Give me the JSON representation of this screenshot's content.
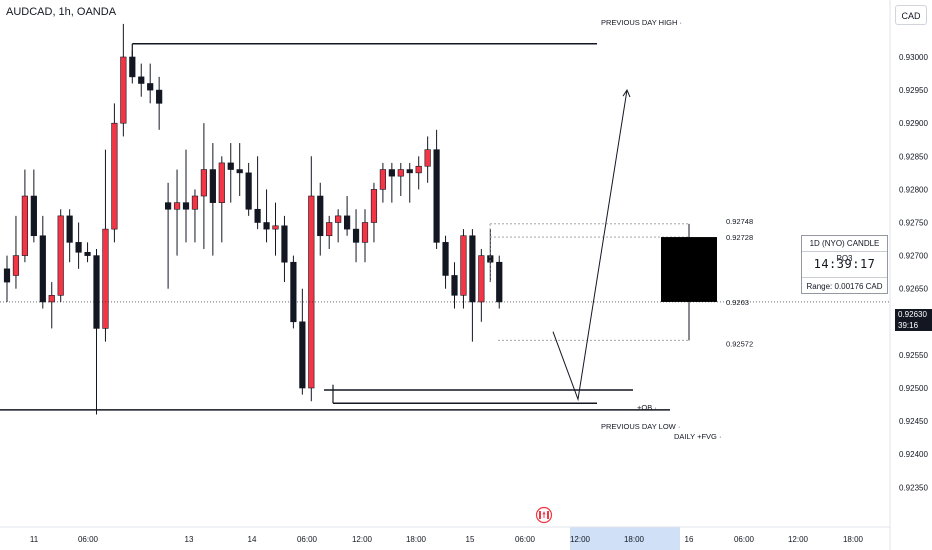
{
  "header": {
    "symbol_title": "AUDCAD, 1h, OANDA",
    "currency": "CAD"
  },
  "chart_data": {
    "type": "candlestick",
    "title": "AUDCAD, 1h, OANDA",
    "y_axis": {
      "ticks": [
        "0.93000",
        "0.92950",
        "0.92900",
        "0.92850",
        "0.92800",
        "0.92750",
        "0.92700",
        "0.92650",
        "0.92600",
        "0.92550",
        "0.92500",
        "0.92450",
        "0.92400",
        "0.92350"
      ],
      "range": [
        0.92325,
        0.9305
      ]
    },
    "x_axis": {
      "ticks": [
        "11",
        "06:00",
        "13",
        "14",
        "06:00",
        "12:00",
        "18:00",
        "15",
        "06:00",
        "12:00",
        "18:00",
        "16",
        "06:00",
        "12:00",
        "18:00"
      ]
    },
    "current_price": "0.92630",
    "countdown": "39:16",
    "colors": {
      "up": "#f23645",
      "down": "#131722",
      "background": "#ffffff"
    },
    "candles": [
      {
        "o": 0.9268,
        "h": 0.927,
        "l": 0.9263,
        "c": 0.9266
      },
      {
        "o": 0.9267,
        "h": 0.9276,
        "l": 0.9265,
        "c": 0.927
      },
      {
        "o": 0.927,
        "h": 0.9283,
        "l": 0.9269,
        "c": 0.9279
      },
      {
        "o": 0.9279,
        "h": 0.9283,
        "l": 0.9272,
        "c": 0.9273
      },
      {
        "o": 0.9273,
        "h": 0.9276,
        "l": 0.9262,
        "c": 0.9263
      },
      {
        "o": 0.9263,
        "h": 0.9266,
        "l": 0.9259,
        "c": 0.9264
      },
      {
        "o": 0.9264,
        "h": 0.9277,
        "l": 0.9263,
        "c": 0.9276
      },
      {
        "o": 0.9276,
        "h": 0.9277,
        "l": 0.9269,
        "c": 0.9272
      },
      {
        "o": 0.9272,
        "h": 0.9275,
        "l": 0.9268,
        "c": 0.92705
      },
      {
        "o": 0.92705,
        "h": 0.9272,
        "l": 0.9269,
        "c": 0.927
      },
      {
        "o": 0.927,
        "h": 0.9271,
        "l": 0.9246,
        "c": 0.9259
      },
      {
        "o": 0.9259,
        "h": 0.9286,
        "l": 0.9257,
        "c": 0.9274
      },
      {
        "o": 0.9274,
        "h": 0.9293,
        "l": 0.9272,
        "c": 0.929
      },
      {
        "o": 0.929,
        "h": 0.9305,
        "l": 0.9288,
        "c": 0.93
      },
      {
        "o": 0.93,
        "h": 0.9301,
        "l": 0.9296,
        "c": 0.9297
      },
      {
        "o": 0.9297,
        "h": 0.9299,
        "l": 0.9294,
        "c": 0.9296
      },
      {
        "o": 0.9296,
        "h": 0.9299,
        "l": 0.9293,
        "c": 0.9295
      },
      {
        "o": 0.9295,
        "h": 0.9297,
        "l": 0.9289,
        "c": 0.9293
      },
      {
        "o": 0.9278,
        "h": 0.9281,
        "l": 0.9265,
        "c": 0.9277
      },
      {
        "o": 0.9277,
        "h": 0.9283,
        "l": 0.927,
        "c": 0.9278
      },
      {
        "o": 0.9278,
        "h": 0.9286,
        "l": 0.9272,
        "c": 0.9277
      },
      {
        "o": 0.9277,
        "h": 0.928,
        "l": 0.9272,
        "c": 0.9279
      },
      {
        "o": 0.9279,
        "h": 0.929,
        "l": 0.9271,
        "c": 0.9283
      },
      {
        "o": 0.9283,
        "h": 0.9287,
        "l": 0.927,
        "c": 0.9278
      },
      {
        "o": 0.9278,
        "h": 0.9285,
        "l": 0.9272,
        "c": 0.9284
      },
      {
        "o": 0.9284,
        "h": 0.9287,
        "l": 0.9278,
        "c": 0.9283
      },
      {
        "o": 0.9283,
        "h": 0.9287,
        "l": 0.9279,
        "c": 0.92825
      },
      {
        "o": 0.92825,
        "h": 0.9284,
        "l": 0.9276,
        "c": 0.9277
      },
      {
        "o": 0.9277,
        "h": 0.9285,
        "l": 0.9274,
        "c": 0.9275
      },
      {
        "o": 0.9275,
        "h": 0.928,
        "l": 0.9272,
        "c": 0.9274
      },
      {
        "o": 0.9274,
        "h": 0.9278,
        "l": 0.927,
        "c": 0.92745
      },
      {
        "o": 0.92745,
        "h": 0.9276,
        "l": 0.9266,
        "c": 0.9269
      },
      {
        "o": 0.9269,
        "h": 0.927,
        "l": 0.9259,
        "c": 0.926
      },
      {
        "o": 0.926,
        "h": 0.9265,
        "l": 0.9249,
        "c": 0.925
      },
      {
        "o": 0.925,
        "h": 0.9285,
        "l": 0.9248,
        "c": 0.9279
      },
      {
        "o": 0.9279,
        "h": 0.9281,
        "l": 0.927,
        "c": 0.9273
      },
      {
        "o": 0.9273,
        "h": 0.9276,
        "l": 0.9271,
        "c": 0.9275
      },
      {
        "o": 0.9275,
        "h": 0.9277,
        "l": 0.9272,
        "c": 0.9276
      },
      {
        "o": 0.9276,
        "h": 0.9279,
        "l": 0.9273,
        "c": 0.9274
      },
      {
        "o": 0.9274,
        "h": 0.9277,
        "l": 0.9269,
        "c": 0.9272
      },
      {
        "o": 0.9272,
        "h": 0.9277,
        "l": 0.9269,
        "c": 0.9275
      },
      {
        "o": 0.9275,
        "h": 0.9281,
        "l": 0.9272,
        "c": 0.928
      },
      {
        "o": 0.928,
        "h": 0.9284,
        "l": 0.9278,
        "c": 0.9283
      },
      {
        "o": 0.9283,
        "h": 0.9284,
        "l": 0.9278,
        "c": 0.9282
      },
      {
        "o": 0.9282,
        "h": 0.9284,
        "l": 0.9279,
        "c": 0.9283
      },
      {
        "o": 0.9283,
        "h": 0.9284,
        "l": 0.9278,
        "c": 0.92825
      },
      {
        "o": 0.92825,
        "h": 0.9285,
        "l": 0.928,
        "c": 0.92835
      },
      {
        "o": 0.92835,
        "h": 0.9288,
        "l": 0.9281,
        "c": 0.9286
      },
      {
        "o": 0.9286,
        "h": 0.9289,
        "l": 0.9271,
        "c": 0.9272
      },
      {
        "o": 0.9272,
        "h": 0.9273,
        "l": 0.9265,
        "c": 0.9267
      },
      {
        "o": 0.9267,
        "h": 0.9269,
        "l": 0.9262,
        "c": 0.9264
      },
      {
        "o": 0.9264,
        "h": 0.9274,
        "l": 0.9262,
        "c": 0.9273
      },
      {
        "o": 0.9273,
        "h": 0.9274,
        "l": 0.9257,
        "c": 0.9263
      },
      {
        "o": 0.9263,
        "h": 0.9271,
        "l": 0.926,
        "c": 0.927
      },
      {
        "o": 0.927,
        "h": 0.9274,
        "l": 0.9266,
        "c": 0.9269
      },
      {
        "o": 0.9269,
        "h": 0.927,
        "l": 0.9262,
        "c": 0.9263
      }
    ],
    "levels": [
      {
        "name": "previous-day-high",
        "label": "PREVIOUS DAY HIGH",
        "price": 0.9302
      },
      {
        "name": "ob",
        "label": "+OB",
        "price": 0.92497
      },
      {
        "name": "previous-day-low",
        "label": "PREVIOUS DAY LOW",
        "price": 0.92477
      },
      {
        "name": "daily-fvg",
        "label": "DAILY +FVG",
        "price": 0.92467
      }
    ],
    "range_labels": [
      "0.92748",
      "0.92728",
      "0.9263",
      "0.92572"
    ],
    "range_values": [
      0.92748,
      0.92728,
      0.9263,
      0.92572
    ],
    "projected_candle": {
      "o": 0.9263,
      "h": 0.92748,
      "l": 0.92572,
      "c": 0.92728
    },
    "projection_path": [
      {
        "candle_index": 62,
        "price": 0.92585
      },
      {
        "candle_index": 65,
        "price": 0.92483
      },
      {
        "candle_index": 71,
        "price": 0.9295
      }
    ],
    "candle_panel": {
      "header": "1D (NYO) CANDLE PO3",
      "timer": "14:39:17",
      "range": "Range: 0.00176 CAD"
    },
    "event_flag_icon": "canada-flag-icon"
  }
}
